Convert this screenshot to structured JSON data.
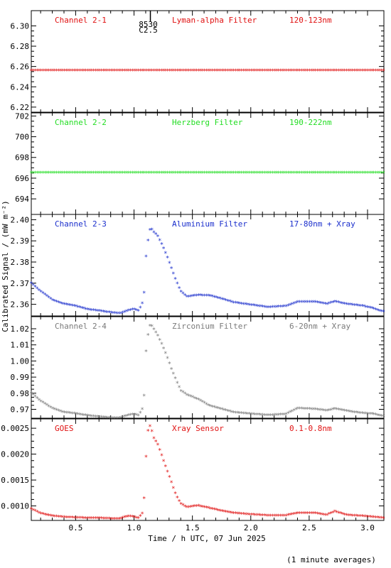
{
  "chart_data": {
    "type": "scatter",
    "xlabel": "Time / h UTC, 07 Jun 2025",
    "ylabel": "Calibrated Signal / (mW m⁻²)",
    "footnote": "(1 minute averages)",
    "xlim": [
      0.12,
      3.14
    ],
    "x_ticks": [
      0.5,
      1.0,
      1.5,
      2.0,
      2.5,
      3.0
    ],
    "x_tick_labels": [
      "0.5",
      "1.0",
      "1.5",
      "2.0",
      "2.5",
      "3.0"
    ],
    "flare_marker": {
      "x": 1.14,
      "class": "C2.5",
      "time": "8530"
    },
    "panels": [
      {
        "name": "Channel 2-1",
        "filter": "Lyman-alpha Filter",
        "band": "120-123nm",
        "color": "#e01010",
        "ylim": [
          6.215,
          6.315
        ],
        "y_ticks": [
          6.22,
          6.24,
          6.26,
          6.28,
          6.3
        ],
        "y_tick_labels": [
          "6.22",
          "6.24",
          "6.26",
          "6.28",
          "6.30"
        ],
        "points": [
          [
            0.12,
            6.256
          ],
          [
            3.14,
            6.256
          ]
        ]
      },
      {
        "name": "Channel 2-2",
        "filter": "Herzberg Filter",
        "band": "190-222nm",
        "color": "#22dd22",
        "ylim": [
          692.5,
          702.3
        ],
        "y_ticks": [
          694,
          696,
          698,
          700,
          702
        ],
        "y_tick_labels": [
          "694",
          "696",
          "698",
          "700",
          "702"
        ],
        "points": [
          [
            0.12,
            696.5
          ],
          [
            3.14,
            696.5
          ]
        ]
      },
      {
        "name": "Channel 2-3",
        "filter": "Aluminium Filter",
        "band": "17-80nm + Xray",
        "color": "#1a2ecc",
        "ylim": [
          2.3545,
          2.4025
        ],
        "y_ticks": [
          2.36,
          2.37,
          2.38,
          2.39,
          2.4
        ],
        "y_tick_labels": [
          "2.36",
          "2.37",
          "2.38",
          "2.39",
          "2.40"
        ],
        "points": [
          [
            0.12,
            2.37
          ],
          [
            0.2,
            2.366
          ],
          [
            0.3,
            2.362
          ],
          [
            0.4,
            2.36
          ],
          [
            0.5,
            2.359
          ],
          [
            0.6,
            2.3575
          ],
          [
            0.7,
            2.3568
          ],
          [
            0.8,
            2.356
          ],
          [
            0.88,
            2.3556
          ],
          [
            0.95,
            2.357
          ],
          [
            1.0,
            2.3576
          ],
          [
            1.04,
            2.3568
          ],
          [
            1.07,
            2.3604
          ],
          [
            1.09,
            2.3665
          ],
          [
            1.1,
            2.381
          ],
          [
            1.12,
            2.39
          ],
          [
            1.14,
            2.3962
          ],
          [
            1.17,
            2.394
          ],
          [
            1.2,
            2.3925
          ],
          [
            1.24,
            2.388
          ],
          [
            1.28,
            2.383
          ],
          [
            1.32,
            2.377
          ],
          [
            1.36,
            2.371
          ],
          [
            1.4,
            2.366
          ],
          [
            1.45,
            2.3635
          ],
          [
            1.55,
            2.3642
          ],
          [
            1.65,
            2.364
          ],
          [
            1.75,
            2.3625
          ],
          [
            1.85,
            2.3608
          ],
          [
            2.0,
            2.3596
          ],
          [
            2.15,
            2.3585
          ],
          [
            2.3,
            2.359
          ],
          [
            2.4,
            2.361
          ],
          [
            2.55,
            2.361
          ],
          [
            2.65,
            2.36
          ],
          [
            2.72,
            2.3612
          ],
          [
            2.82,
            2.36
          ],
          [
            2.95,
            2.3592
          ],
          [
            3.05,
            2.358
          ],
          [
            3.1,
            2.3568
          ],
          [
            3.14,
            2.3565
          ]
        ]
      },
      {
        "name": "Channel 2-4",
        "filter": "Zirconium Filter",
        "band": "6-20nm + Xray",
        "color": "#7a7a7a",
        "ylim": [
          0.9645,
          1.0275
        ],
        "y_ticks": [
          0.97,
          0.98,
          0.99,
          1.0,
          1.01,
          1.02
        ],
        "y_tick_labels": [
          "0.97",
          "0.98",
          "0.99",
          "1.00",
          "1.01",
          "1.02"
        ],
        "points": [
          [
            0.12,
            0.98
          ],
          [
            0.2,
            0.975
          ],
          [
            0.3,
            0.9705
          ],
          [
            0.4,
            0.968
          ],
          [
            0.5,
            0.9672
          ],
          [
            0.6,
            0.966
          ],
          [
            0.7,
            0.9652
          ],
          [
            0.8,
            0.9646
          ],
          [
            0.88,
            0.9646
          ],
          [
            0.95,
            0.9662
          ],
          [
            1.0,
            0.9668
          ],
          [
            1.04,
            0.966
          ],
          [
            1.07,
            0.97
          ],
          [
            1.09,
            0.98
          ],
          [
            1.1,
            1.004
          ],
          [
            1.12,
            1.016
          ],
          [
            1.14,
            1.023
          ],
          [
            1.17,
            1.0195
          ],
          [
            1.2,
            1.016
          ],
          [
            1.24,
            1.01
          ],
          [
            1.28,
            1.003
          ],
          [
            1.32,
            0.995
          ],
          [
            1.36,
            0.988
          ],
          [
            1.4,
            0.9815
          ],
          [
            1.45,
            0.979
          ],
          [
            1.55,
            0.976
          ],
          [
            1.65,
            0.972
          ],
          [
            1.75,
            0.97
          ],
          [
            1.85,
            0.968
          ],
          [
            2.0,
            0.967
          ],
          [
            2.15,
            0.9662
          ],
          [
            2.3,
            0.9668
          ],
          [
            2.4,
            0.9705
          ],
          [
            2.55,
            0.97
          ],
          [
            2.65,
            0.969
          ],
          [
            2.72,
            0.9702
          ],
          [
            2.82,
            0.9688
          ],
          [
            2.95,
            0.9675
          ],
          [
            3.05,
            0.967
          ],
          [
            3.1,
            0.966
          ],
          [
            3.14,
            0.9655
          ]
        ]
      },
      {
        "name": "GOES",
        "filter": "Xray Sensor",
        "band": "0.1-0.8nm",
        "color": "#e01010",
        "ylim": [
          0.00072,
          0.00268
        ],
        "y_ticks": [
          0.001,
          0.0015,
          0.002,
          0.0025
        ],
        "y_tick_labels": [
          "0.0010",
          "0.0015",
          "0.0020",
          "0.0025"
        ],
        "points": [
          [
            0.12,
            0.00094
          ],
          [
            0.2,
            0.00085
          ],
          [
            0.3,
            0.0008
          ],
          [
            0.4,
            0.00078
          ],
          [
            0.5,
            0.00077
          ],
          [
            0.6,
            0.00076
          ],
          [
            0.7,
            0.00076
          ],
          [
            0.8,
            0.00075
          ],
          [
            0.88,
            0.00075
          ],
          [
            0.95,
            0.0008
          ],
          [
            1.0,
            0.00078
          ],
          [
            1.04,
            0.00076
          ],
          [
            1.07,
            0.00085
          ],
          [
            1.09,
            0.0012
          ],
          [
            1.1,
            0.00185
          ],
          [
            1.12,
            0.00245
          ],
          [
            1.14,
            0.00255
          ],
          [
            1.17,
            0.0023
          ],
          [
            1.2,
            0.0022
          ],
          [
            1.24,
            0.00195
          ],
          [
            1.28,
            0.0017
          ],
          [
            1.32,
            0.00145
          ],
          [
            1.36,
            0.0012
          ],
          [
            1.4,
            0.00104
          ],
          [
            1.45,
            0.00097
          ],
          [
            1.55,
            0.001
          ],
          [
            1.65,
            0.00095
          ],
          [
            1.75,
            0.0009
          ],
          [
            1.85,
            0.00086
          ],
          [
            2.0,
            0.00083
          ],
          [
            2.15,
            0.00081
          ],
          [
            2.3,
            0.00081
          ],
          [
            2.4,
            0.00086
          ],
          [
            2.55,
            0.00086
          ],
          [
            2.65,
            0.00082
          ],
          [
            2.72,
            0.00089
          ],
          [
            2.82,
            0.00082
          ],
          [
            2.95,
            0.0008
          ],
          [
            3.05,
            0.00078
          ],
          [
            3.1,
            0.00077
          ],
          [
            3.14,
            0.00076
          ]
        ]
      }
    ]
  }
}
